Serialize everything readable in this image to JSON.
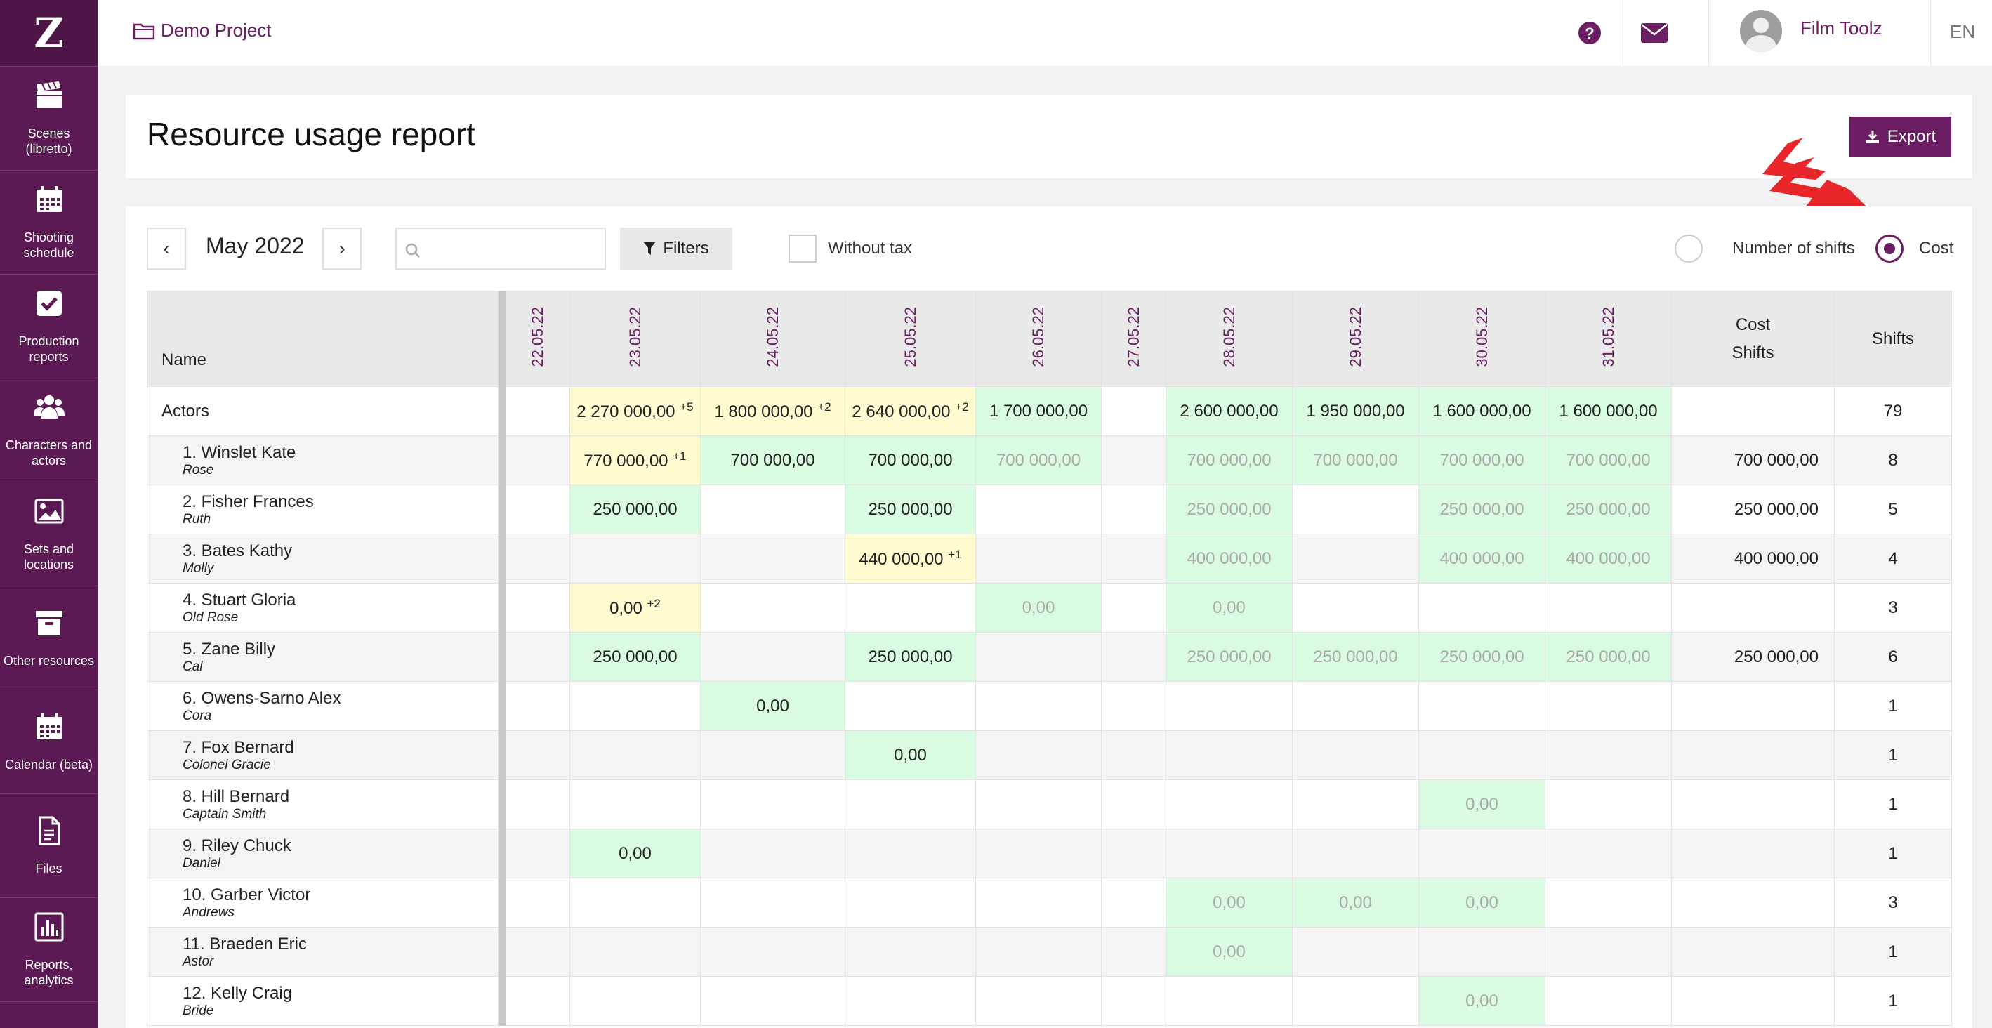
{
  "app": {
    "logo_letter": "Z",
    "project": "Demo Project",
    "user_name": "Film Toolz",
    "lang": "EN"
  },
  "sidebar": [
    {
      "label": "Scenes (libretto)",
      "icon": "clapperboard-icon"
    },
    {
      "label": "Shooting schedule",
      "icon": "calendar-icon"
    },
    {
      "label": "Production reports",
      "icon": "checkbox-icon"
    },
    {
      "label": "Characters and actors",
      "icon": "users-icon"
    },
    {
      "label": "Sets and locations",
      "icon": "image-icon"
    },
    {
      "label": "Other resources",
      "icon": "archive-icon"
    },
    {
      "label": "Calendar (beta)",
      "icon": "calendar-icon"
    },
    {
      "label": "Files",
      "icon": "file-icon"
    },
    {
      "label": "Reports, analytics",
      "icon": "bar-chart-icon"
    }
  ],
  "page": {
    "title": "Resource usage report",
    "export_label": "Export"
  },
  "toolbar": {
    "month": "May 2022",
    "prev": "‹",
    "next": "›",
    "search_placeholder": "",
    "filters_label": "Filters",
    "without_tax_label": "Without tax",
    "without_tax_checked": false,
    "mode_shifts_label": "Number of shifts",
    "mode_cost_label": "Cost",
    "selected_mode": "Cost"
  },
  "table": {
    "name_header": "Name",
    "dates": [
      "22.05.22",
      "23.05.22",
      "24.05.22",
      "25.05.22",
      "26.05.22",
      "27.05.22",
      "28.05.22",
      "29.05.22",
      "30.05.22",
      "31.05.22"
    ],
    "cost_header_1": "Cost",
    "cost_header_2": "Shifts",
    "shifts_header": "Shifts",
    "group": {
      "name": "Actors",
      "cells": [
        {
          "v": "",
          "s": ""
        },
        {
          "v": "2 270 000,00",
          "s": "+5",
          "t": "y"
        },
        {
          "v": "1 800 000,00",
          "s": "+2",
          "t": "y"
        },
        {
          "v": "2 640 000,00",
          "s": "+2",
          "t": "y"
        },
        {
          "v": "1 700 000,00",
          "s": "",
          "t": "g"
        },
        {
          "v": "",
          "s": ""
        },
        {
          "v": "2 600 000,00",
          "s": "",
          "t": "g"
        },
        {
          "v": "1 950 000,00",
          "s": "",
          "t": "g"
        },
        {
          "v": "1 600 000,00",
          "s": "",
          "t": "g"
        },
        {
          "v": "1 600 000,00",
          "s": "",
          "t": "g"
        }
      ],
      "cost": "",
      "shifts": "79"
    },
    "rows": [
      {
        "name": "1. Winslet Kate",
        "role": "Rose",
        "cost": "700 000,00",
        "shifts": "8",
        "cells": [
          {
            "v": ""
          },
          {
            "v": "770 000,00",
            "s": "+1",
            "t": "y"
          },
          {
            "v": "700 000,00",
            "t": "g"
          },
          {
            "v": "700 000,00",
            "t": "g"
          },
          {
            "v": "700 000,00",
            "t": "gf"
          },
          {
            "v": ""
          },
          {
            "v": "700 000,00",
            "t": "gf"
          },
          {
            "v": "700 000,00",
            "t": "gf"
          },
          {
            "v": "700 000,00",
            "t": "gf"
          },
          {
            "v": "700 000,00",
            "t": "gf"
          }
        ]
      },
      {
        "name": "2. Fisher Frances",
        "role": "Ruth",
        "cost": "250 000,00",
        "shifts": "5",
        "cells": [
          {
            "v": ""
          },
          {
            "v": "250 000,00",
            "t": "g"
          },
          {
            "v": ""
          },
          {
            "v": "250 000,00",
            "t": "g"
          },
          {
            "v": ""
          },
          {
            "v": ""
          },
          {
            "v": "250 000,00",
            "t": "gf"
          },
          {
            "v": ""
          },
          {
            "v": "250 000,00",
            "t": "gf"
          },
          {
            "v": "250 000,00",
            "t": "gf"
          }
        ]
      },
      {
        "name": "3. Bates Kathy",
        "role": "Molly",
        "cost": "400 000,00",
        "shifts": "4",
        "cells": [
          {
            "v": ""
          },
          {
            "v": ""
          },
          {
            "v": ""
          },
          {
            "v": "440 000,00",
            "s": "+1",
            "t": "y"
          },
          {
            "v": ""
          },
          {
            "v": ""
          },
          {
            "v": "400 000,00",
            "t": "gf"
          },
          {
            "v": ""
          },
          {
            "v": "400 000,00",
            "t": "gf"
          },
          {
            "v": "400 000,00",
            "t": "gf"
          }
        ]
      },
      {
        "name": "4. Stuart Gloria",
        "role": "Old Rose",
        "cost": "",
        "shifts": "3",
        "cells": [
          {
            "v": ""
          },
          {
            "v": "0,00",
            "s": "+2",
            "t": "y"
          },
          {
            "v": ""
          },
          {
            "v": ""
          },
          {
            "v": "0,00",
            "t": "gf"
          },
          {
            "v": ""
          },
          {
            "v": "0,00",
            "t": "gf"
          },
          {
            "v": ""
          },
          {
            "v": ""
          },
          {
            "v": ""
          }
        ]
      },
      {
        "name": "5. Zane Billy",
        "role": "Cal",
        "cost": "250 000,00",
        "shifts": "6",
        "cells": [
          {
            "v": ""
          },
          {
            "v": "250 000,00",
            "t": "g"
          },
          {
            "v": ""
          },
          {
            "v": "250 000,00",
            "t": "g"
          },
          {
            "v": ""
          },
          {
            "v": ""
          },
          {
            "v": "250 000,00",
            "t": "gf"
          },
          {
            "v": "250 000,00",
            "t": "gf"
          },
          {
            "v": "250 000,00",
            "t": "gf"
          },
          {
            "v": "250 000,00",
            "t": "gf"
          }
        ]
      },
      {
        "name": "6. Owens-Sarno Alex",
        "role": "Cora",
        "cost": "",
        "shifts": "1",
        "cells": [
          {
            "v": ""
          },
          {
            "v": ""
          },
          {
            "v": "0,00",
            "t": "g"
          },
          {
            "v": ""
          },
          {
            "v": ""
          },
          {
            "v": ""
          },
          {
            "v": ""
          },
          {
            "v": ""
          },
          {
            "v": ""
          },
          {
            "v": ""
          }
        ]
      },
      {
        "name": "7. Fox Bernard",
        "role": "Colonel Gracie",
        "cost": "",
        "shifts": "1",
        "cells": [
          {
            "v": ""
          },
          {
            "v": ""
          },
          {
            "v": ""
          },
          {
            "v": "0,00",
            "t": "g"
          },
          {
            "v": ""
          },
          {
            "v": ""
          },
          {
            "v": ""
          },
          {
            "v": ""
          },
          {
            "v": ""
          },
          {
            "v": ""
          }
        ]
      },
      {
        "name": "8. Hill Bernard",
        "role": "Captain Smith",
        "cost": "",
        "shifts": "1",
        "cells": [
          {
            "v": ""
          },
          {
            "v": ""
          },
          {
            "v": ""
          },
          {
            "v": ""
          },
          {
            "v": ""
          },
          {
            "v": ""
          },
          {
            "v": ""
          },
          {
            "v": ""
          },
          {
            "v": "0,00",
            "t": "gf"
          },
          {
            "v": ""
          }
        ]
      },
      {
        "name": "9. Riley Chuck",
        "role": "Daniel",
        "cost": "",
        "shifts": "1",
        "cells": [
          {
            "v": ""
          },
          {
            "v": "0,00",
            "t": "g"
          },
          {
            "v": ""
          },
          {
            "v": ""
          },
          {
            "v": ""
          },
          {
            "v": ""
          },
          {
            "v": ""
          },
          {
            "v": ""
          },
          {
            "v": ""
          },
          {
            "v": ""
          }
        ]
      },
      {
        "name": "10. Garber Victor",
        "role": "Andrews",
        "cost": "",
        "shifts": "3",
        "cells": [
          {
            "v": ""
          },
          {
            "v": ""
          },
          {
            "v": ""
          },
          {
            "v": ""
          },
          {
            "v": ""
          },
          {
            "v": ""
          },
          {
            "v": "0,00",
            "t": "gf"
          },
          {
            "v": "0,00",
            "t": "gf"
          },
          {
            "v": "0,00",
            "t": "gf"
          },
          {
            "v": ""
          }
        ]
      },
      {
        "name": "11. Braeden Eric",
        "role": "Astor",
        "cost": "",
        "shifts": "1",
        "cells": [
          {
            "v": ""
          },
          {
            "v": ""
          },
          {
            "v": ""
          },
          {
            "v": ""
          },
          {
            "v": ""
          },
          {
            "v": ""
          },
          {
            "v": "0,00",
            "t": "gf"
          },
          {
            "v": ""
          },
          {
            "v": ""
          },
          {
            "v": ""
          }
        ]
      },
      {
        "name": "12. Kelly Craig",
        "role": "Bride",
        "cost": "",
        "shifts": "1",
        "cells": [
          {
            "v": ""
          },
          {
            "v": ""
          },
          {
            "v": ""
          },
          {
            "v": ""
          },
          {
            "v": ""
          },
          {
            "v": ""
          },
          {
            "v": ""
          },
          {
            "v": ""
          },
          {
            "v": "0,00",
            "t": "gf"
          },
          {
            "v": ""
          }
        ]
      }
    ]
  },
  "colors": {
    "brand": "#6b1e63",
    "sidebar": "#5b1a53",
    "yellow_cell": "#fffbd0",
    "green_cell": "#d9fbe1",
    "arrow_red": "#e8262a"
  }
}
